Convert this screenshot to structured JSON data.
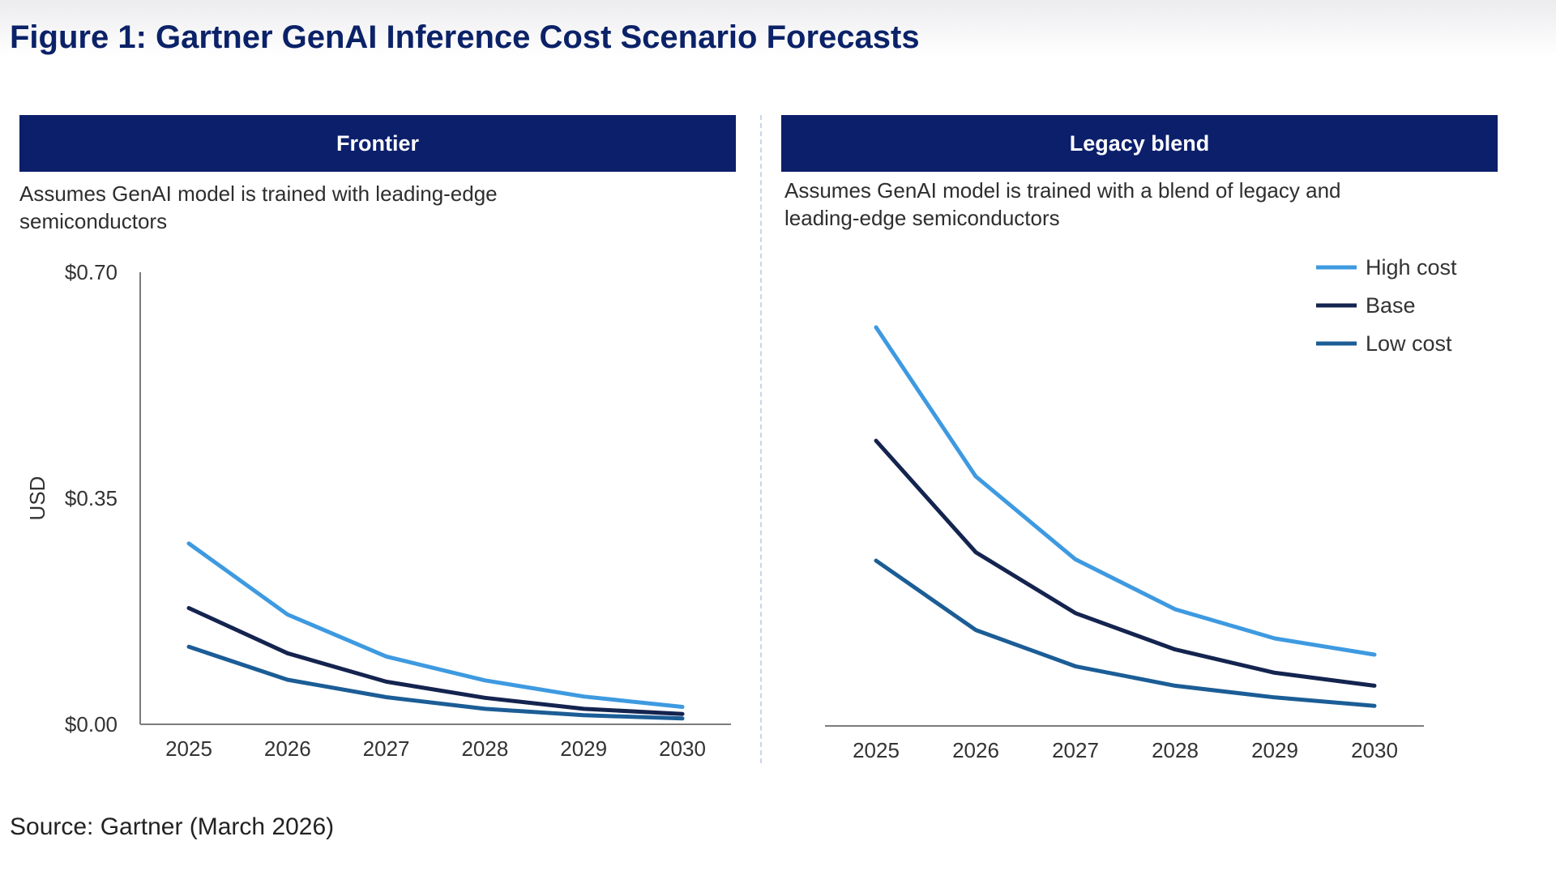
{
  "title": "Figure 1: Gartner GenAI Inference Cost Scenario Forecasts",
  "source": "Source: Gartner (March 2026)",
  "colors": {
    "header_bg": "#0b1f6b",
    "title": "#0b2268",
    "high_cost": "#3e9ae0",
    "base": "#14244f",
    "low_cost": "#1b5d96"
  },
  "legend": [
    {
      "name": "High cost",
      "color": "#3e9ae0"
    },
    {
      "name": "Base",
      "color": "#14244f"
    },
    {
      "name": "Low cost",
      "color": "#1b5d96"
    }
  ],
  "panels": [
    {
      "header": "Frontier",
      "description": "Assumes GenAI model is trained with leading-edge semiconductors"
    },
    {
      "header": "Legacy blend",
      "description": "Assumes GenAI model is trained with a blend of legacy and leading-edge semiconductors"
    }
  ],
  "chart_data": [
    {
      "type": "line",
      "title": "Frontier",
      "ylabel": "USD",
      "xlabel": "",
      "ylim": [
        0,
        0.7
      ],
      "yticks": [
        "$0.70",
        "$0.35",
        "$0.00"
      ],
      "ytick_values": [
        0.7,
        0.35,
        0.0
      ],
      "x": [
        "2025",
        "2026",
        "2027",
        "2028",
        "2029",
        "2030"
      ],
      "series": [
        {
          "name": "High cost",
          "values": [
            0.28,
            0.17,
            0.105,
            0.068,
            0.043,
            0.027
          ]
        },
        {
          "name": "Base",
          "values": [
            0.18,
            0.11,
            0.066,
            0.041,
            0.024,
            0.016
          ]
        },
        {
          "name": "Low cost",
          "values": [
            0.12,
            0.069,
            0.042,
            0.024,
            0.014,
            0.009
          ]
        }
      ]
    },
    {
      "type": "line",
      "title": "Legacy blend",
      "ylim": [
        0,
        0.7
      ],
      "x": [
        "2025",
        "2026",
        "2027",
        "2028",
        "2029",
        "2030"
      ],
      "legend_position": "top-right",
      "series": [
        {
          "name": "High cost",
          "values": [
            0.615,
            0.385,
            0.257,
            0.18,
            0.135,
            0.11
          ]
        },
        {
          "name": "Base",
          "values": [
            0.44,
            0.268,
            0.174,
            0.118,
            0.082,
            0.062
          ]
        },
        {
          "name": "Low cost",
          "values": [
            0.255,
            0.148,
            0.092,
            0.062,
            0.044,
            0.031
          ]
        }
      ]
    }
  ]
}
